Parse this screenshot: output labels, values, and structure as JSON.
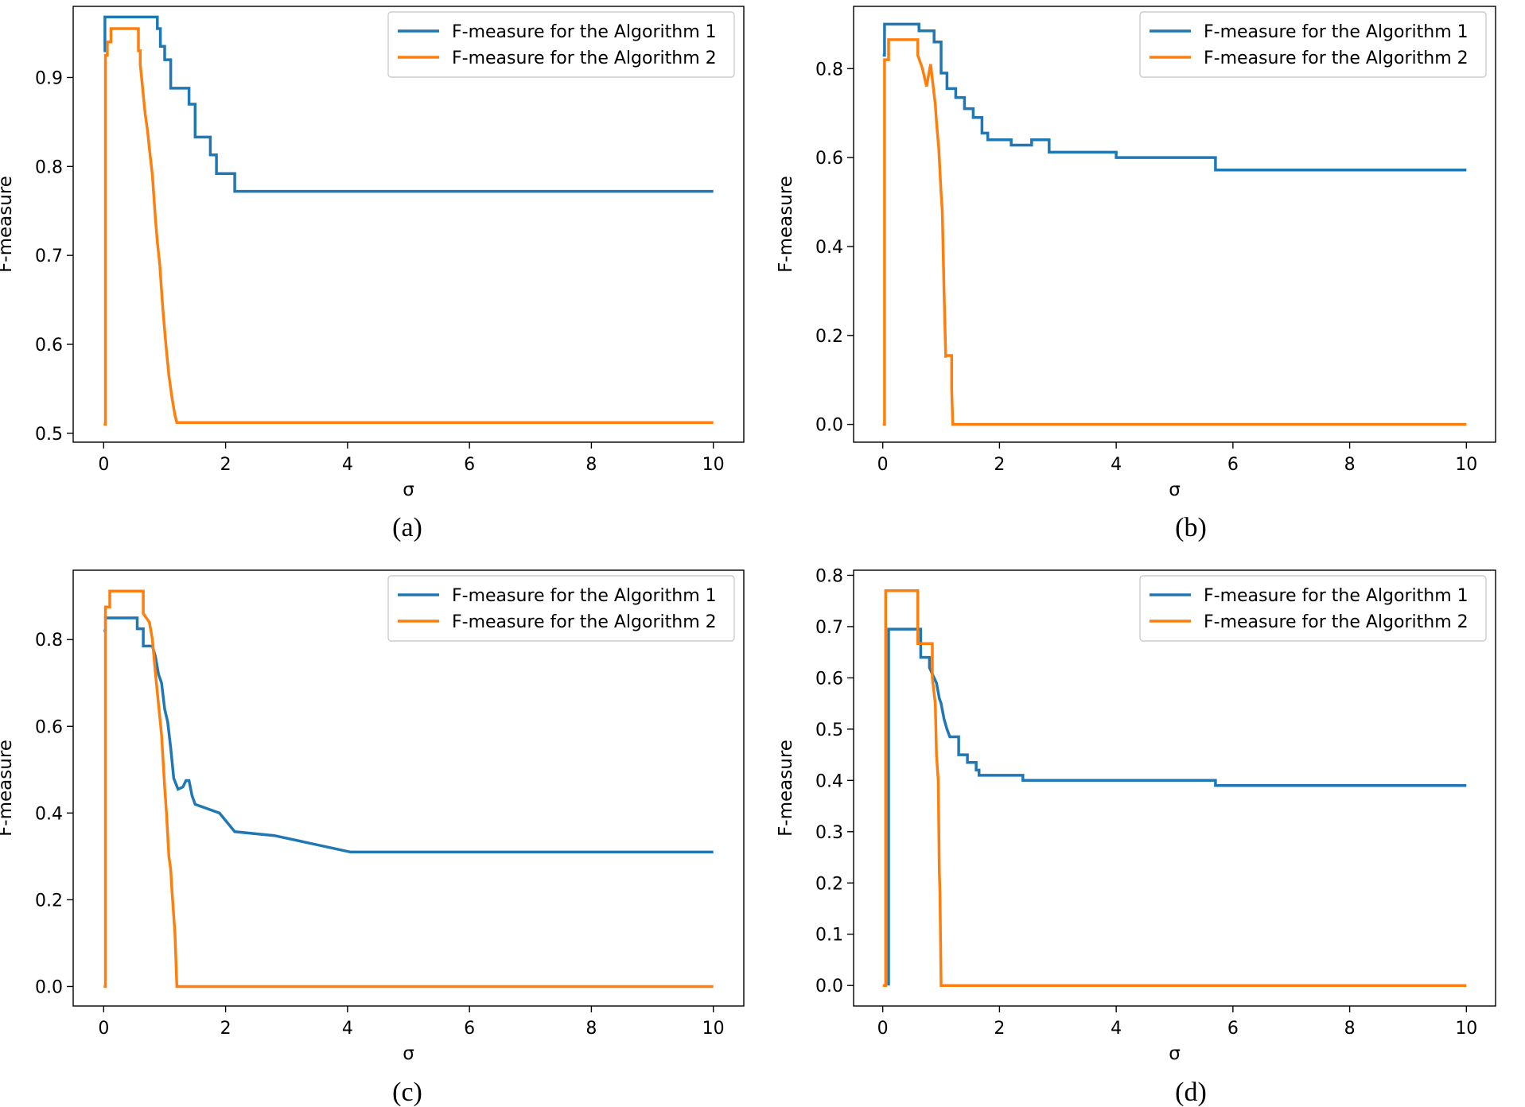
{
  "chart_data": [
    {
      "type": "line",
      "caption": "(a)",
      "xlabel": "σ",
      "ylabel": "F-measure",
      "xlim": [
        -0.5,
        10.5
      ],
      "ylim": [
        0.49,
        0.98
      ],
      "xticks": [
        0,
        2,
        4,
        6,
        8,
        10
      ],
      "yticks": [
        0.5,
        0.6,
        0.7,
        0.8,
        0.9
      ],
      "xtick_labels": [
        "0",
        "2",
        "4",
        "6",
        "8",
        "10"
      ],
      "ytick_labels": [
        "0.5",
        "0.6",
        "0.7",
        "0.8",
        "0.9"
      ],
      "legend_position": "top-right",
      "series": [
        {
          "name": "F-measure for the Algorithm 1",
          "color": "#1f77b4",
          "x": [
            0,
            0.02,
            0.02,
            0.88,
            0.88,
            0.93,
            0.93,
            1.0,
            1.0,
            1.1,
            1.1,
            1.4,
            1.4,
            1.5,
            1.5,
            1.75,
            1.75,
            1.85,
            1.85,
            2.15,
            2.15,
            10
          ],
          "y": [
            0.93,
            0.93,
            0.968,
            0.968,
            0.955,
            0.955,
            0.935,
            0.935,
            0.92,
            0.92,
            0.888,
            0.888,
            0.87,
            0.87,
            0.833,
            0.833,
            0.813,
            0.813,
            0.792,
            0.792,
            0.772,
            0.772
          ]
        },
        {
          "name": "F-measure for the Algorithm 2",
          "color": "#ff7f0e",
          "x": [
            0,
            0.03,
            0.03,
            0.06,
            0.06,
            0.12,
            0.12,
            0.33,
            0.33,
            0.57,
            0.57,
            0.6,
            0.6,
            0.68,
            0.72,
            0.75,
            0.8,
            0.83,
            0.85,
            0.88,
            0.92,
            0.97,
            1.02,
            1.07,
            1.12,
            1.17,
            1.2,
            1.2,
            10
          ],
          "y": [
            0.51,
            0.51,
            0.925,
            0.925,
            0.94,
            0.94,
            0.955,
            0.955,
            0.955,
            0.955,
            0.93,
            0.93,
            0.915,
            0.86,
            0.84,
            0.82,
            0.79,
            0.76,
            0.74,
            0.715,
            0.69,
            0.64,
            0.6,
            0.565,
            0.54,
            0.52,
            0.512,
            0.512,
            0.512
          ]
        }
      ]
    },
    {
      "type": "line",
      "caption": "(b)",
      "xlabel": "σ",
      "ylabel": "F-measure",
      "xlim": [
        -0.5,
        10.5
      ],
      "ylim": [
        -0.04,
        0.94
      ],
      "xticks": [
        0,
        2,
        4,
        6,
        8,
        10
      ],
      "yticks": [
        0.0,
        0.2,
        0.4,
        0.6,
        0.8
      ],
      "xtick_labels": [
        "0",
        "2",
        "4",
        "6",
        "8",
        "10"
      ],
      "ytick_labels": [
        "0.0",
        "0.2",
        "0.4",
        "0.6",
        "0.8"
      ],
      "legend_position": "top-right",
      "series": [
        {
          "name": "F-measure for the Algorithm 1",
          "color": "#1f77b4",
          "x": [
            0,
            0.03,
            0.03,
            0.62,
            0.62,
            0.88,
            0.88,
            1.0,
            1.0,
            1.1,
            1.1,
            1.25,
            1.25,
            1.4,
            1.4,
            1.55,
            1.55,
            1.7,
            1.7,
            1.8,
            1.8,
            2.2,
            2.2,
            2.55,
            2.55,
            2.85,
            2.85,
            4.0,
            4.0,
            5.7,
            5.7,
            10
          ],
          "y": [
            0.83,
            0.83,
            0.9,
            0.9,
            0.885,
            0.885,
            0.86,
            0.86,
            0.79,
            0.79,
            0.755,
            0.755,
            0.735,
            0.735,
            0.71,
            0.71,
            0.69,
            0.69,
            0.655,
            0.655,
            0.64,
            0.64,
            0.628,
            0.628,
            0.64,
            0.64,
            0.612,
            0.612,
            0.6,
            0.6,
            0.572,
            0.572
          ]
        },
        {
          "name": "F-measure for the Algorithm 2",
          "color": "#ff7f0e",
          "x": [
            0,
            0.03,
            0.03,
            0.1,
            0.1,
            0.6,
            0.6,
            0.68,
            0.75,
            0.82,
            0.9,
            0.92,
            0.96,
            1.0,
            1.02,
            1.05,
            1.08,
            1.08,
            1.18,
            1.18,
            1.2,
            10
          ],
          "y": [
            0.0,
            0.0,
            0.82,
            0.82,
            0.865,
            0.865,
            0.83,
            0.8,
            0.76,
            0.81,
            0.72,
            0.68,
            0.62,
            0.52,
            0.48,
            0.3,
            0.15,
            0.155,
            0.155,
            0.08,
            0.0,
            0.0
          ]
        }
      ]
    },
    {
      "type": "line",
      "caption": "(c)",
      "xlabel": "σ",
      "ylabel": "F-measure",
      "xlim": [
        -0.5,
        10.5
      ],
      "ylim": [
        -0.045,
        0.96
      ],
      "xticks": [
        0,
        2,
        4,
        6,
        8,
        10
      ],
      "yticks": [
        0.0,
        0.2,
        0.4,
        0.6,
        0.8
      ],
      "xtick_labels": [
        "0",
        "2",
        "4",
        "6",
        "8",
        "10"
      ],
      "ytick_labels": [
        "0.0",
        "0.2",
        "0.4",
        "0.6",
        "0.8"
      ],
      "legend_position": "top-right",
      "series": [
        {
          "name": "F-measure for the Algorithm 1",
          "color": "#1f77b4",
          "x": [
            0,
            0.03,
            0.03,
            0.55,
            0.55,
            0.65,
            0.65,
            0.8,
            0.85,
            0.9,
            0.95,
            1.0,
            1.05,
            1.1,
            1.15,
            1.22,
            1.3,
            1.35,
            1.4,
            1.45,
            1.5,
            1.5,
            1.7,
            1.7,
            1.9,
            1.9,
            2.15,
            2.15,
            2.8,
            2.8,
            4.05,
            4.05,
            10
          ],
          "y": [
            0.82,
            0.82,
            0.85,
            0.85,
            0.825,
            0.825,
            0.785,
            0.785,
            0.76,
            0.72,
            0.7,
            0.64,
            0.61,
            0.55,
            0.48,
            0.455,
            0.46,
            0.475,
            0.475,
            0.44,
            0.42,
            0.42,
            0.41,
            0.41,
            0.4,
            0.4,
            0.357,
            0.357,
            0.348,
            0.348,
            0.31,
            0.31,
            0.31
          ]
        },
        {
          "name": "F-measure for the Algorithm 2",
          "color": "#ff7f0e",
          "x": [
            0,
            0.03,
            0.03,
            0.1,
            0.1,
            0.65,
            0.65,
            0.75,
            0.8,
            0.85,
            0.9,
            0.95,
            1.0,
            1.03,
            1.07,
            1.1,
            1.12,
            1.17,
            1.2,
            1.2,
            10
          ],
          "y": [
            0.0,
            0.0,
            0.875,
            0.875,
            0.912,
            0.912,
            0.86,
            0.84,
            0.8,
            0.72,
            0.65,
            0.58,
            0.46,
            0.4,
            0.3,
            0.27,
            0.22,
            0.12,
            0.0,
            0.0,
            0.0
          ]
        }
      ]
    },
    {
      "type": "line",
      "caption": "(d)",
      "xlabel": "σ",
      "ylabel": "F-measure",
      "xlim": [
        -0.5,
        10.5
      ],
      "ylim": [
        -0.04,
        0.81
      ],
      "xticks": [
        0,
        2,
        4,
        6,
        8,
        10
      ],
      "yticks": [
        0.0,
        0.1,
        0.2,
        0.3,
        0.4,
        0.5,
        0.6,
        0.7,
        0.8
      ],
      "xtick_labels": [
        "0",
        "2",
        "4",
        "6",
        "8",
        "10"
      ],
      "ytick_labels": [
        "0.0",
        "0.1",
        "0.2",
        "0.3",
        "0.4",
        "0.5",
        "0.6",
        "0.7",
        "0.8"
      ],
      "legend_position": "top-right",
      "series": [
        {
          "name": "F-measure for the Algorithm 1",
          "color": "#1f77b4",
          "x": [
            0.1,
            0.1,
            0.65,
            0.65,
            0.8,
            0.8,
            0.88,
            0.92,
            0.97,
            1.0,
            1.05,
            1.1,
            1.15,
            1.3,
            1.3,
            1.45,
            1.45,
            1.6,
            1.6,
            1.65,
            1.65,
            2.4,
            2.4,
            5.7,
            5.7,
            10
          ],
          "y": [
            0.0,
            0.695,
            0.695,
            0.64,
            0.64,
            0.62,
            0.6,
            0.59,
            0.56,
            0.55,
            0.52,
            0.5,
            0.485,
            0.485,
            0.45,
            0.45,
            0.435,
            0.435,
            0.42,
            0.42,
            0.41,
            0.41,
            0.4,
            0.4,
            0.39,
            0.39
          ]
        },
        {
          "name": "F-measure for the Algorithm 2",
          "color": "#ff7f0e",
          "x": [
            0,
            0.05,
            0.05,
            0.6,
            0.6,
            0.85,
            0.85,
            0.9,
            0.92,
            0.95,
            0.97,
            0.98,
            1.0,
            1.0,
            10
          ],
          "y": [
            0.0,
            0.0,
            0.77,
            0.77,
            0.667,
            0.667,
            0.6,
            0.55,
            0.45,
            0.4,
            0.22,
            0.18,
            0.0,
            0.0,
            0.0
          ]
        }
      ]
    }
  ]
}
